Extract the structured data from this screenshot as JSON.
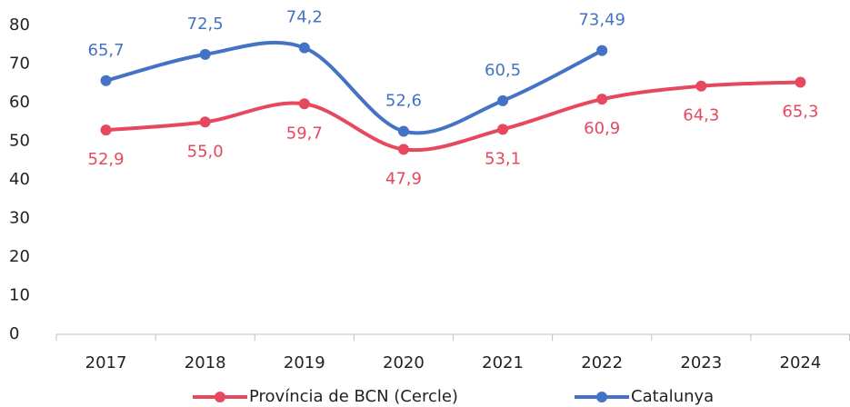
{
  "chart_data": {
    "type": "line",
    "categories": [
      "2017",
      "2018",
      "2019",
      "2020",
      "2021",
      "2022",
      "2023",
      "2024"
    ],
    "series": [
      {
        "name": "Província de BCN (Cercle)",
        "color": "#e5485f",
        "values": [
          52.9,
          55.0,
          59.7,
          47.9,
          53.1,
          60.9,
          64.3,
          65.3
        ],
        "value_labels": [
          "52,9",
          "55,0",
          "59,7",
          "47,9",
          "53,1",
          "60,9",
          "64,3",
          "65,3"
        ]
      },
      {
        "name": "Catalunya",
        "color": "#4472c4",
        "values": [
          65.7,
          72.5,
          74.2,
          52.6,
          60.5,
          73.49,
          null,
          null
        ],
        "value_labels": [
          "65,7",
          "72,5",
          "74,2",
          "52,6",
          "60,5",
          "73,49",
          null,
          null
        ]
      }
    ],
    "ylim": [
      0,
      80
    ],
    "yticks": [
      0,
      10,
      20,
      30,
      40,
      50,
      60,
      70,
      80
    ],
    "grid": false,
    "legend": "bottom"
  }
}
